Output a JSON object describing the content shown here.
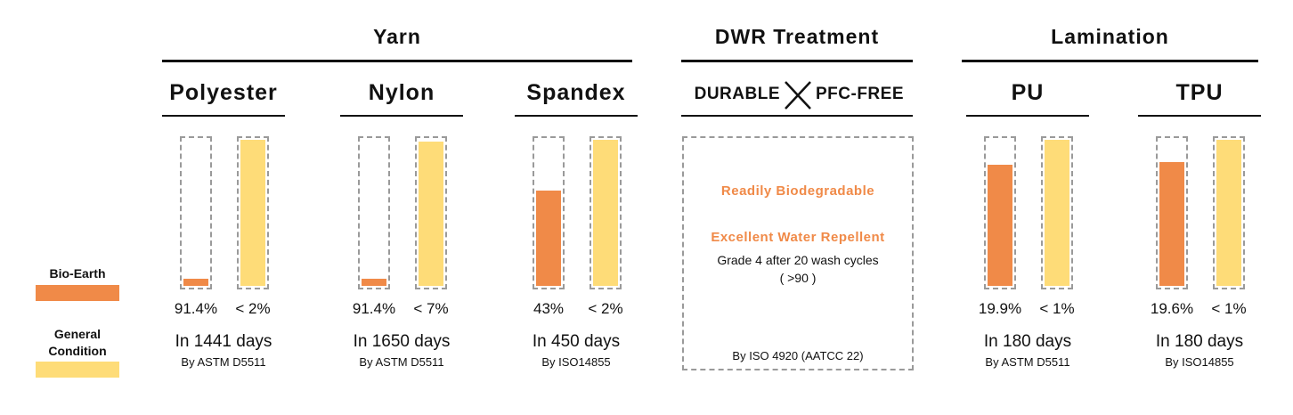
{
  "colors": {
    "bio_earth": "#f08a48",
    "general": "#fedc78",
    "box_border": "#9a9a9a"
  },
  "legend": {
    "bio_earth_label": "Bio-Earth",
    "general_label_line1": "General",
    "general_label_line2": "Condition"
  },
  "sections": {
    "yarn": "Yarn",
    "dwr": "DWR Treatment",
    "lamination": "Lamination"
  },
  "dwr": {
    "left": "DURABLE",
    "right": "PFC-FREE",
    "line1": "Readily Biodegradable",
    "line2": "Excellent Water Repellent",
    "line3": "Grade 4 after 20 wash cycles",
    "line4": "( >90 )",
    "method": "By ISO 4920 (AATCC 22)"
  },
  "chart_data": {
    "type": "bar",
    "categories": [
      "Polyester",
      "Nylon",
      "Spandex",
      "PU",
      "TPU"
    ],
    "series": [
      {
        "name": "Bio-Earth",
        "values": [
          0.05,
          0.05,
          0.65,
          0.83,
          0.85
        ],
        "labels": [
          "91.4%",
          "91.4%",
          "43%",
          "19.9%",
          "19.6%"
        ]
      },
      {
        "name": "General Condition",
        "values": [
          1.0,
          0.99,
          1.0,
          1.0,
          1.0
        ],
        "labels": [
          "< 2%",
          "< 7%",
          "< 2%",
          "< 1%",
          "< 1%"
        ]
      }
    ],
    "days": [
      "In 1441 days",
      "In 1650 days",
      "In 450 days",
      "In 180 days",
      "In 180 days"
    ],
    "methods": [
      "By ASTM D5511",
      "By ASTM D5511",
      "By ISO14855",
      "By ASTM D5511",
      "By ISO14855"
    ]
  }
}
